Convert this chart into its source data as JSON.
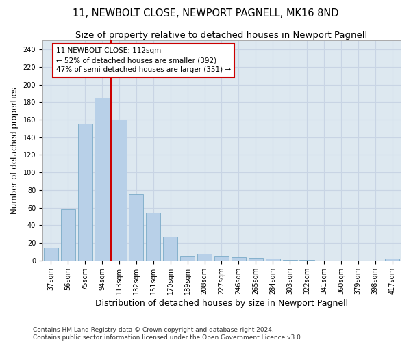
{
  "title_line1": "11, NEWBOLT CLOSE, NEWPORT PAGNELL, MK16 8ND",
  "title_line2": "Size of property relative to detached houses in Newport Pagnell",
  "xlabel": "Distribution of detached houses by size in Newport Pagnell",
  "ylabel": "Number of detached properties",
  "categories": [
    "37sqm",
    "56sqm",
    "75sqm",
    "94sqm",
    "113sqm",
    "132sqm",
    "151sqm",
    "170sqm",
    "189sqm",
    "208sqm",
    "227sqm",
    "246sqm",
    "265sqm",
    "284sqm",
    "303sqm",
    "322sqm",
    "341sqm",
    "360sqm",
    "379sqm",
    "398sqm",
    "417sqm"
  ],
  "values": [
    15,
    58,
    155,
    185,
    160,
    75,
    54,
    27,
    5,
    8,
    5,
    4,
    3,
    2,
    1,
    1,
    0,
    0,
    0,
    0,
    2
  ],
  "bar_color": "#b8d0e8",
  "bar_edge_color": "#7aaac8",
  "grid_color": "#c8d4e4",
  "bg_color": "#dde8f0",
  "vline_color": "#cc0000",
  "annotation_box_text": "11 NEWBOLT CLOSE: 112sqm\n← 52% of detached houses are smaller (392)\n47% of semi-detached houses are larger (351) →",
  "annotation_box_color": "#cc0000",
  "annotation_box_bg": "#ffffff",
  "ylim": [
    0,
    250
  ],
  "yticks": [
    0,
    20,
    40,
    60,
    80,
    100,
    120,
    140,
    160,
    180,
    200,
    220,
    240
  ],
  "footnote": "Contains HM Land Registry data © Crown copyright and database right 2024.\nContains public sector information licensed under the Open Government Licence v3.0.",
  "title_fontsize": 10.5,
  "subtitle_fontsize": 9.5,
  "tick_fontsize": 7,
  "ylabel_fontsize": 8.5,
  "xlabel_fontsize": 9,
  "footnote_fontsize": 6.5
}
